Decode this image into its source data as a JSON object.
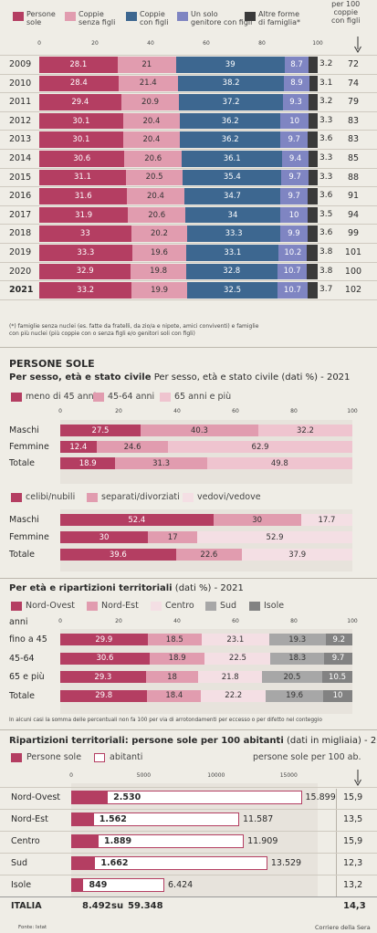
{
  "colors": {
    "persone_sole": "#b43e62",
    "coppie_senza": "#e19caf",
    "coppie_con": "#3d6790",
    "genitore": "#7f85c2",
    "altre": "#3a3a3a",
    "light_pink": "#efc4cf",
    "very_light_pink": "#f4dfe4",
    "gray": "#a7a7a7",
    "dark_gray": "#828282",
    "band": "#e7e3dc"
  },
  "chart1": {
    "legend": [
      {
        "label": "Persone\nsole",
        "color": "#b43e62"
      },
      {
        "label": "Coppie\nsenza figli",
        "color": "#e19caf"
      },
      {
        "label": "Coppie\ncon figli",
        "color": "#3d6790"
      },
      {
        "label": "Un solo\ngenitore con figli",
        "color": "#7f85c2"
      },
      {
        "label": "Altre forme\ndi famiglia*",
        "color": "#3a3a3a"
      }
    ],
    "last_header": "per 100\ncoppie\ncon figli",
    "ticks": [
      "0",
      "20",
      "40",
      "60",
      "80",
      "100"
    ],
    "footnote": "(*) famiglie senza nuclei (es. fatte da fratelli, da zio/a e nipote, amici conviventi) e famiglie\ncon più nuclei (più coppie con o senza figli e/o genitori soli con figli)"
  },
  "chart_data": [
    {
      "type": "bar",
      "stacked": true,
      "categories": [
        "2009",
        "2010",
        "2011",
        "2012",
        "2013",
        "2014",
        "2015",
        "2016",
        "2017",
        "2018",
        "2019",
        "2020",
        "2021"
      ],
      "series": [
        {
          "name": "Persone sole",
          "values": [
            28.1,
            28.4,
            29.4,
            30.1,
            30.1,
            30.6,
            31.1,
            31.6,
            31.9,
            33,
            33.3,
            32.9,
            33.2
          ]
        },
        {
          "name": "Coppie senza figli",
          "values": [
            21,
            21.4,
            20.9,
            20.4,
            20.4,
            20.6,
            20.5,
            20.4,
            20.6,
            20.2,
            19.6,
            19.8,
            19.9
          ]
        },
        {
          "name": "Coppie con figli",
          "values": [
            39,
            38.2,
            37.2,
            36.2,
            36.2,
            36.1,
            35.4,
            34.7,
            34,
            33.3,
            33.1,
            32.8,
            32.5
          ]
        },
        {
          "name": "Un solo genitore con figli",
          "values": [
            8.7,
            8.9,
            9.3,
            10,
            9.7,
            9.4,
            9.7,
            9.7,
            10,
            9.9,
            10.2,
            10.7,
            10.7
          ]
        },
        {
          "name": "Altre forme di famiglia*",
          "values": [
            3.2,
            3.1,
            3.2,
            3.3,
            3.6,
            3.3,
            3.3,
            3.6,
            3.5,
            3.6,
            3.8,
            3.8,
            3.7
          ]
        }
      ],
      "extra_column": {
        "name": "per 100 coppie con figli",
        "values": [
          72,
          74,
          79,
          83,
          83,
          85,
          88,
          91,
          94,
          99,
          101,
          100,
          102
        ]
      },
      "xlim": [
        0,
        100
      ]
    },
    {
      "type": "bar",
      "stacked": true,
      "title": "PERSONE SOLE",
      "subtitle": "Per sesso, età e stato civile (dati %) - 2021",
      "categories": [
        "Maschi",
        "Femmine",
        "Totale"
      ],
      "series": [
        {
          "name": "meno di 45 anni",
          "values": [
            27.5,
            12.4,
            18.9
          ]
        },
        {
          "name": "45-64 anni",
          "values": [
            40.3,
            24.6,
            31.3
          ]
        },
        {
          "name": "65 anni e più",
          "values": [
            32.2,
            62.9,
            49.8
          ]
        }
      ],
      "ticks": [
        "0",
        "20",
        "40",
        "60",
        "80",
        "100"
      ],
      "xlim": [
        0,
        100
      ]
    },
    {
      "type": "bar",
      "stacked": true,
      "categories": [
        "Maschi",
        "Femmine",
        "Totale"
      ],
      "series": [
        {
          "name": "celibi/nubili",
          "values": [
            52.4,
            30,
            39.6
          ]
        },
        {
          "name": "separati/divorziati",
          "values": [
            30,
            17,
            22.6
          ]
        },
        {
          "name": "vedovi/vedove",
          "values": [
            17.7,
            52.9,
            37.9
          ]
        }
      ],
      "xlim": [
        0,
        100
      ]
    },
    {
      "type": "bar",
      "stacked": true,
      "title": "Per età e ripartizioni territoriali",
      "subtitle": "(dati %) - 2021",
      "axis_label": "anni",
      "categories": [
        "fino a 45",
        "45-64",
        "65 e più",
        "Totale"
      ],
      "series": [
        {
          "name": "Nord-Ovest",
          "values": [
            29.9,
            30.6,
            29.3,
            29.8
          ]
        },
        {
          "name": "Nord-Est",
          "values": [
            18.5,
            18.9,
            18,
            18.4
          ]
        },
        {
          "name": "Centro",
          "values": [
            23.1,
            22.5,
            21.8,
            22.2
          ]
        },
        {
          "name": "Sud",
          "values": [
            19.3,
            18.3,
            20.5,
            19.6
          ]
        },
        {
          "name": "Isole",
          "values": [
            9.2,
            9.7,
            10.5,
            10
          ]
        }
      ],
      "ticks": [
        "0",
        "20",
        "40",
        "60",
        "80",
        "100"
      ],
      "note": "In alcuni casi la somma delle percentuali non fa 100 per via di arrotondamenti per eccesso o per difetto nel conteggio",
      "xlim": [
        0,
        100
      ]
    },
    {
      "type": "bar",
      "title": "Ripartizioni territoriali: persone sole per 100 abitanti",
      "subtitle": "(dati in migliaia) - 2021",
      "legend": [
        "Persone sole",
        "abitanti"
      ],
      "right_header": "persone sole per 100 ab.",
      "categories": [
        "Nord-Ovest",
        "Nord-Est",
        "Centro",
        "Sud",
        "Isole"
      ],
      "series": [
        {
          "name": "Persone sole",
          "values": [
            2530,
            1562,
            1889,
            1662,
            849
          ],
          "labels": [
            "2.530",
            "1.562",
            "1.889",
            "1.662",
            "849"
          ]
        },
        {
          "name": "abitanti",
          "values": [
            15899,
            11587,
            11909,
            13529,
            6424
          ],
          "labels": [
            "15.899",
            "11.587",
            "11.909",
            "13.529",
            "6.424"
          ]
        }
      ],
      "per100": [
        "15,9",
        "13,5",
        "15,9",
        "12,3",
        "13,2"
      ],
      "ticks": [
        "0",
        "5000",
        "10000",
        "15000"
      ],
      "xlim": [
        0,
        17000
      ],
      "total": {
        "label": "ITALIA",
        "sole": "8.492",
        "su": "su",
        "abitanti": "59.348",
        "per100": "14,3"
      }
    }
  ],
  "footer": {
    "source": "Fonte: Istat",
    "credit": "Corriere della Sera"
  }
}
